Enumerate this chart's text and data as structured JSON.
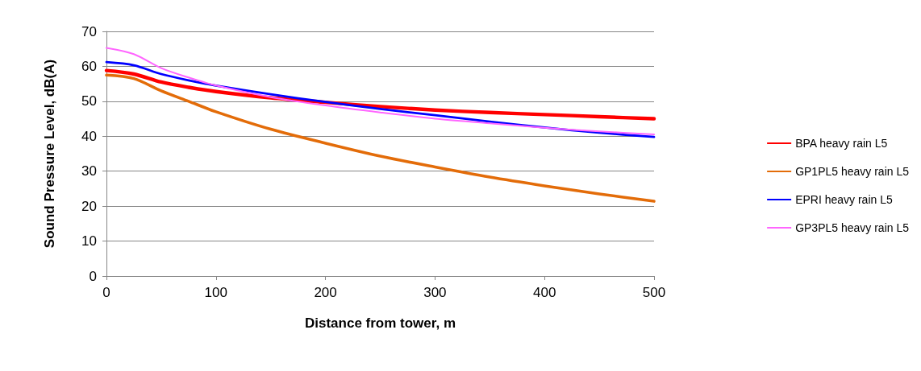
{
  "chart_data": {
    "type": "line",
    "xlabel": "Distance from tower, m",
    "ylabel": "Sound Pressure Level, dB(A)",
    "x": [
      0,
      25,
      50,
      75,
      100,
      150,
      200,
      250,
      300,
      350,
      400,
      450,
      500
    ],
    "series": [
      {
        "name": "BPA heavy rain L5",
        "color": "#ff0000",
        "values": [
          58.8,
          57.8,
          55.5,
          54,
          52.8,
          51,
          49.7,
          48.5,
          47.5,
          46.8,
          46.2,
          45.6,
          45
        ]
      },
      {
        "name": "GP1PL5 heavy rain L5",
        "color": "#e36c09",
        "values": [
          57.5,
          56.5,
          53,
          50,
          47,
          42,
          38,
          34.3,
          31.2,
          28.3,
          25.8,
          23.5,
          21.4
        ]
      },
      {
        "name": "EPRI heavy rain L5",
        "color": "#0000ff",
        "values": [
          61.2,
          60.3,
          57.8,
          56,
          54.5,
          52,
          49.8,
          47.8,
          46,
          44.2,
          42.5,
          41,
          39.8
        ]
      },
      {
        "name": "GP3PL5 heavy rain L5",
        "color": "#ff66ff",
        "values": [
          65.3,
          63.5,
          59.5,
          56.8,
          54.5,
          51.2,
          48.8,
          46.8,
          45,
          43.7,
          42.4,
          41.4,
          40.5
        ]
      }
    ],
    "xlim": [
      0,
      500
    ],
    "xticks": [
      0,
      100,
      200,
      300,
      400,
      500
    ],
    "ylim": [
      0,
      70
    ],
    "yticks": [
      0,
      10,
      20,
      30,
      40,
      50,
      60,
      70
    ],
    "grid": "y",
    "legend": "right",
    "marker": "none",
    "line_style": "solid"
  }
}
